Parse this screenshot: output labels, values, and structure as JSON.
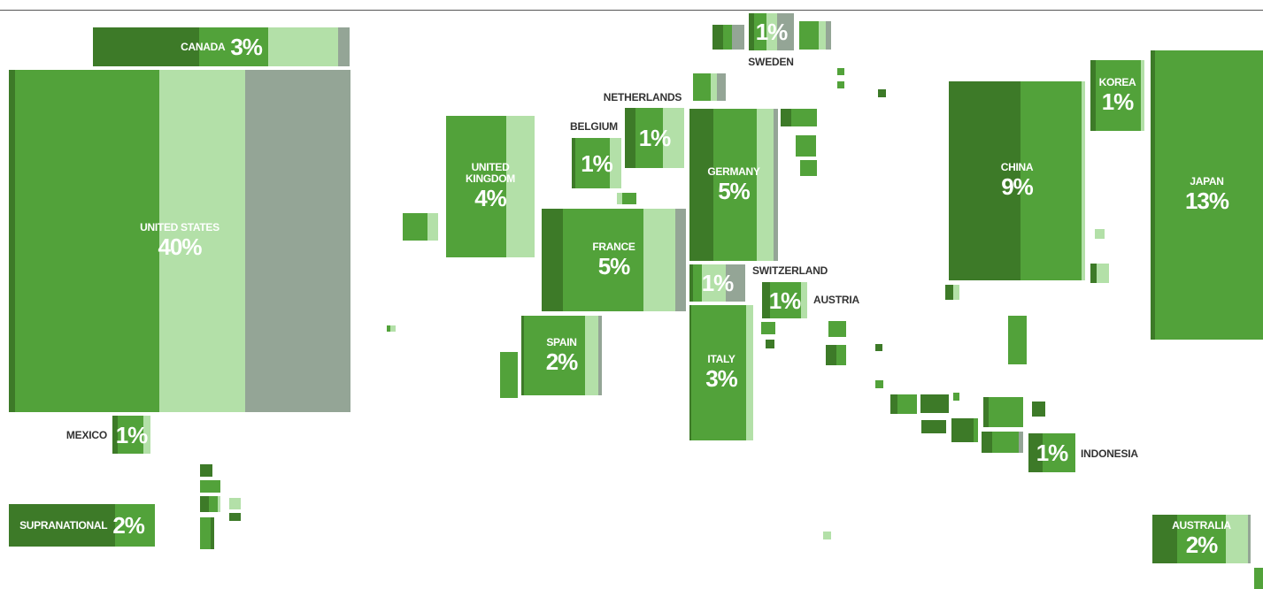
{
  "countries": [
    {
      "name": "CANADA",
      "share": 3,
      "share_label": "3%"
    },
    {
      "name": "UNITED STATES",
      "share": 40,
      "share_label": "40%"
    },
    {
      "name": "MEXICO",
      "share": 1,
      "share_label": "1%"
    },
    {
      "name": "SUPRANATIONAL",
      "share": 2,
      "share_label": "2%"
    },
    {
      "name": "UNITED KINGDOM",
      "share": 4,
      "share_label": "4%"
    },
    {
      "name": "BELGIUM",
      "share": 1,
      "share_label": "1%"
    },
    {
      "name": "NETHERLANDS",
      "share": 1,
      "share_label": "1%"
    },
    {
      "name": "GERMANY",
      "share": 5,
      "share_label": "5%"
    },
    {
      "name": "FRANCE",
      "share": 5,
      "share_label": "5%"
    },
    {
      "name": "SWITZERLAND",
      "share": 1,
      "share_label": "1%"
    },
    {
      "name": "AUSTRIA",
      "share": 1,
      "share_label": "1%"
    },
    {
      "name": "SPAIN",
      "share": 2,
      "share_label": "2%"
    },
    {
      "name": "ITALY",
      "share": 3,
      "share_label": "3%"
    },
    {
      "name": "SWEDEN",
      "share": 1,
      "share_label": "1%"
    },
    {
      "name": "CHINA",
      "share": 9,
      "share_label": "9%"
    },
    {
      "name": "KOREA",
      "share": 1,
      "share_label": "1%"
    },
    {
      "name": "JAPAN",
      "share": 13,
      "share_label": "13%"
    },
    {
      "name": "INDONESIA",
      "share": 1,
      "share_label": "1%"
    },
    {
      "name": "AUSTRALIA",
      "share": 2,
      "share_label": "2%"
    }
  ]
}
